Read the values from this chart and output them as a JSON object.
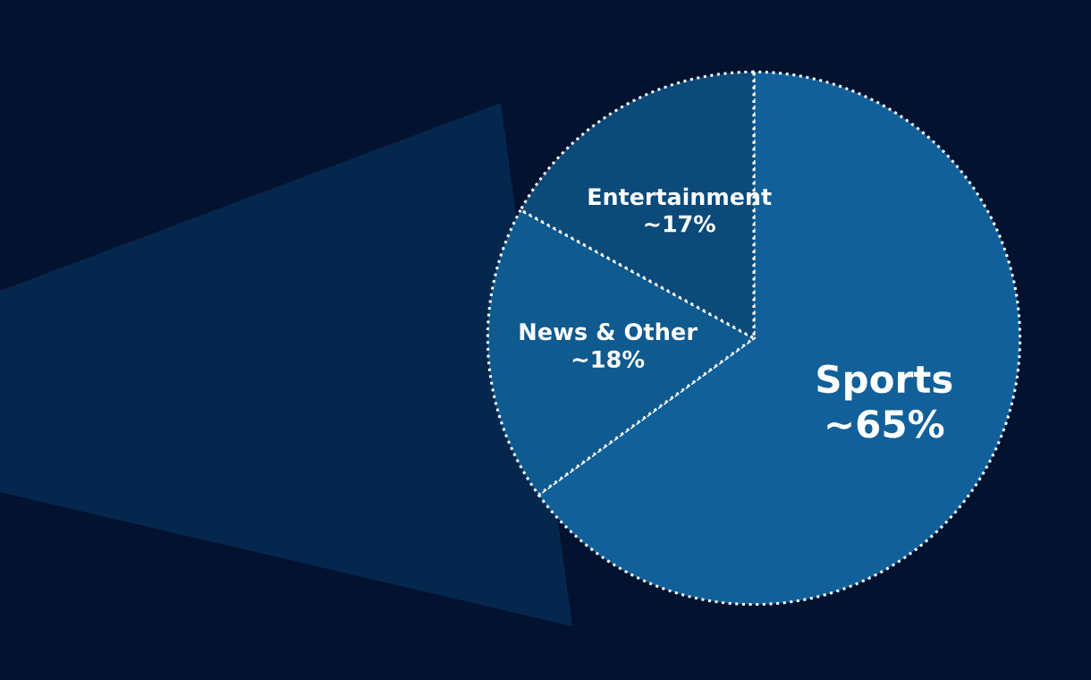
{
  "chart_data": {
    "type": "pie",
    "categories": [
      "Sports",
      "News & Other",
      "Entertainment"
    ],
    "values": [
      65,
      18,
      17
    ],
    "value_labels": [
      "~65%",
      "~18%",
      "~17%"
    ],
    "colors": [
      "#11609a",
      "#0f5a8f",
      "#0c4a7a"
    ],
    "legend": false
  }
}
